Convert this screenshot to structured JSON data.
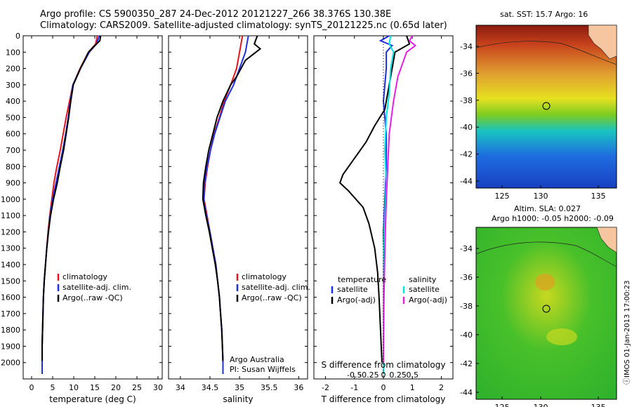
{
  "titles": {
    "line1": "Argo profile: CS 5900350_287 24-Dec-2012 20121227_266 38.376S 130.38E",
    "line2": "Climatology: CARS2009. Satellite-adjusted climatology: synTS_20121225.nc (0.65d later)"
  },
  "colors": {
    "climatology": "#e8141a",
    "satellite": "#1f2ee6",
    "argo": "#000000",
    "sat_salinity": "#00e5e5",
    "argo_salinity": "#e61ee6"
  },
  "chart_data": [
    {
      "type": "line",
      "name": "temperature",
      "xlabel": "temperature (deg C)",
      "ylabel": "",
      "xlim": [
        -2,
        31
      ],
      "ylim": [
        2100,
        0
      ],
      "xticks": [
        0,
        5,
        10,
        15,
        20,
        25,
        30
      ],
      "yticks": [
        0,
        100,
        200,
        300,
        400,
        500,
        600,
        700,
        800,
        900,
        1000,
        1100,
        1200,
        1300,
        1400,
        1500,
        1600,
        1700,
        1800,
        1900,
        2000
      ],
      "legend": [
        "climatology",
        "satellite-adj. clim.",
        "Argo(..raw -QC)"
      ],
      "series": [
        {
          "key": "climatology",
          "color": "#e8141a",
          "points": [
            [
              15.6,
              0
            ],
            [
              15.2,
              50
            ],
            [
              13.5,
              100
            ],
            [
              11.5,
              200
            ],
            [
              9.8,
              300
            ],
            [
              9.0,
              400
            ],
            [
              8.2,
              500
            ],
            [
              7.5,
              600
            ],
            [
              6.8,
              700
            ],
            [
              6.0,
              800
            ],
            [
              5.3,
              900
            ],
            [
              4.8,
              1000
            ],
            [
              4.3,
              1100
            ],
            [
              3.9,
              1200
            ],
            [
              3.6,
              1300
            ],
            [
              3.3,
              1400
            ],
            [
              3.0,
              1500
            ],
            [
              2.8,
              1600
            ],
            [
              2.7,
              1700
            ],
            [
              2.6,
              1800
            ],
            [
              2.5,
              1900
            ],
            [
              2.5,
              2000
            ],
            [
              2.5,
              2070
            ]
          ]
        },
        {
          "key": "satellite",
          "color": "#1f2ee6",
          "points": [
            [
              16.1,
              0
            ],
            [
              15.4,
              50
            ],
            [
              13.7,
              100
            ],
            [
              11.6,
              200
            ],
            [
              9.8,
              300
            ],
            [
              9.2,
              400
            ],
            [
              8.7,
              500
            ],
            [
              8.1,
              600
            ],
            [
              7.4,
              700
            ],
            [
              6.6,
              800
            ],
            [
              5.8,
              900
            ],
            [
              5.0,
              1000
            ],
            [
              4.4,
              1100
            ],
            [
              4.0,
              1200
            ],
            [
              3.6,
              1300
            ],
            [
              3.3,
              1400
            ],
            [
              3.0,
              1500
            ],
            [
              2.8,
              1600
            ],
            [
              2.7,
              1700
            ],
            [
              2.6,
              1800
            ],
            [
              2.5,
              1900
            ],
            [
              2.5,
              2000
            ],
            [
              2.5,
              2070
            ]
          ]
        },
        {
          "key": "argo",
          "color": "#000000",
          "points": [
            [
              16.4,
              0
            ],
            [
              16.2,
              30
            ],
            [
              15.0,
              60
            ],
            [
              13.5,
              100
            ],
            [
              11.6,
              200
            ],
            [
              9.9,
              300
            ],
            [
              9.3,
              400
            ],
            [
              8.8,
              500
            ],
            [
              8.2,
              600
            ],
            [
              7.6,
              700
            ],
            [
              6.8,
              800
            ],
            [
              6.1,
              900
            ],
            [
              5.2,
              1000
            ],
            [
              4.5,
              1100
            ],
            [
              4.0,
              1200
            ],
            [
              3.6,
              1300
            ],
            [
              3.3,
              1400
            ],
            [
              3.0,
              1500
            ],
            [
              2.8,
              1600
            ],
            [
              2.7,
              1700
            ],
            [
              2.6,
              1800
            ],
            [
              2.5,
              1900
            ],
            [
              2.5,
              1990
            ]
          ]
        }
      ]
    },
    {
      "type": "line",
      "name": "salinity",
      "xlabel": "salinity",
      "xlim": [
        33.8,
        36.15
      ],
      "ylim": [
        2100,
        0
      ],
      "xticks": [
        34,
        34.5,
        35,
        35.5,
        36
      ],
      "xticklabels": [
        "34",
        "34.5",
        "35",
        "35.5",
        "36"
      ],
      "legend": [
        "climatology",
        "satellite-adj. clim.",
        "Argo(..raw -QC)"
      ],
      "annotation": [
        "Argo Australia",
        "PI: Susan Wijffels"
      ],
      "series": [
        {
          "key": "climatology",
          "color": "#e8141a",
          "points": [
            [
              35.05,
              0
            ],
            [
              35.0,
              100
            ],
            [
              34.95,
              200
            ],
            [
              34.85,
              300
            ],
            [
              34.74,
              400
            ],
            [
              34.66,
              500
            ],
            [
              34.57,
              600
            ],
            [
              34.51,
              700
            ],
            [
              34.46,
              800
            ],
            [
              34.42,
              900
            ],
            [
              34.4,
              1000
            ],
            [
              34.45,
              1100
            ],
            [
              34.5,
              1200
            ],
            [
              34.55,
              1300
            ],
            [
              34.6,
              1400
            ],
            [
              34.63,
              1500
            ],
            [
              34.66,
              1600
            ],
            [
              34.68,
              1700
            ],
            [
              34.7,
              1800
            ],
            [
              34.71,
              1900
            ],
            [
              34.72,
              2000
            ],
            [
              34.72,
              2070
            ]
          ]
        },
        {
          "key": "satellite",
          "color": "#1f2ee6",
          "points": [
            [
              35.15,
              0
            ],
            [
              35.1,
              100
            ],
            [
              35.0,
              200
            ],
            [
              34.9,
              300
            ],
            [
              34.76,
              400
            ],
            [
              34.67,
              500
            ],
            [
              34.58,
              600
            ],
            [
              34.51,
              700
            ],
            [
              34.45,
              800
            ],
            [
              34.41,
              900
            ],
            [
              34.39,
              1000
            ],
            [
              34.44,
              1100
            ],
            [
              34.5,
              1200
            ],
            [
              34.55,
              1300
            ],
            [
              34.6,
              1400
            ],
            [
              34.63,
              1500
            ],
            [
              34.66,
              1600
            ],
            [
              34.68,
              1700
            ],
            [
              34.7,
              1800
            ],
            [
              34.71,
              1900
            ],
            [
              34.72,
              2000
            ],
            [
              34.72,
              2070
            ]
          ]
        },
        {
          "key": "argo",
          "color": "#000000",
          "points": [
            [
              35.3,
              0
            ],
            [
              35.25,
              50
            ],
            [
              35.35,
              80
            ],
            [
              35.1,
              150
            ],
            [
              34.95,
              250
            ],
            [
              34.85,
              300
            ],
            [
              34.72,
              400
            ],
            [
              34.62,
              500
            ],
            [
              34.55,
              600
            ],
            [
              34.48,
              700
            ],
            [
              34.43,
              800
            ],
            [
              34.39,
              900
            ],
            [
              34.38,
              1000
            ],
            [
              34.43,
              1100
            ],
            [
              34.49,
              1200
            ],
            [
              34.54,
              1300
            ],
            [
              34.59,
              1400
            ],
            [
              34.63,
              1500
            ],
            [
              34.66,
              1600
            ],
            [
              34.68,
              1700
            ],
            [
              34.7,
              1800
            ],
            [
              34.71,
              1900
            ],
            [
              34.72,
              1990
            ]
          ]
        }
      ]
    },
    {
      "type": "line",
      "name": "difference",
      "xlabel": "T difference from climatology",
      "top_xlabel": "S difference from climatology",
      "xlim": [
        -2.4,
        2.4
      ],
      "ylim": [
        2100,
        0
      ],
      "xticks": [
        -2,
        -1,
        0,
        1,
        2
      ],
      "top_ticks": [
        -0.5,
        -0.25,
        0,
        0.25,
        0.5
      ],
      "top_ticklabels": [
        "-0.5",
        "-0.25",
        "0",
        "0.25",
        "0.5"
      ],
      "legend_temperature": {
        "heading": "temperature",
        "items": [
          "satellite",
          "Argo(-adj)"
        ]
      },
      "legend_salinity": {
        "heading": "salinity",
        "items": [
          "satellite",
          "Argo(-adj)"
        ]
      },
      "series": [
        {
          "key": "temp_satellite",
          "color": "#1f2ee6",
          "points": [
            [
              0.2,
              0
            ],
            [
              -0.1,
              30
            ],
            [
              0.3,
              60
            ],
            [
              0.1,
              100
            ],
            [
              0.1,
              200
            ],
            [
              0.0,
              400
            ],
            [
              0.1,
              600
            ],
            [
              0.1,
              800
            ],
            [
              0.05,
              1000
            ],
            [
              0.0,
              1200
            ],
            [
              0.0,
              1400
            ],
            [
              0.0,
              1600
            ],
            [
              0.0,
              1800
            ],
            [
              0.0,
              2000
            ],
            [
              0.0,
              2070
            ]
          ]
        },
        {
          "key": "temp_argo",
          "color": "#000000",
          "points": [
            [
              0.8,
              0
            ],
            [
              0.9,
              50
            ],
            [
              0.4,
              100
            ],
            [
              0.3,
              200
            ],
            [
              0.2,
              300
            ],
            [
              0.1,
              400
            ],
            [
              0.05,
              450
            ],
            [
              -0.3,
              550
            ],
            [
              -0.6,
              650
            ],
            [
              -1.0,
              750
            ],
            [
              -1.4,
              850
            ],
            [
              -1.5,
              900
            ],
            [
              -1.2,
              950
            ],
            [
              -0.7,
              1050
            ],
            [
              -0.5,
              1150
            ],
            [
              -0.3,
              1300
            ],
            [
              -0.2,
              1450
            ],
            [
              -0.15,
              1600
            ],
            [
              -0.1,
              1800
            ],
            [
              -0.05,
              2000
            ]
          ]
        },
        {
          "key": "sal_satellite",
          "color": "#00e5e5",
          "points": [
            [
              0.25,
              0
            ],
            [
              0.2,
              50
            ],
            [
              0.35,
              100
            ],
            [
              0.25,
              200
            ],
            [
              0.2,
              350
            ],
            [
              0.1,
              500
            ],
            [
              0.05,
              700
            ],
            [
              0.1,
              900
            ],
            [
              0.05,
              1100
            ],
            [
              0.0,
              1300
            ],
            [
              0.0,
              1500
            ],
            [
              0.0,
              1800
            ],
            [
              0.0,
              2070
            ]
          ]
        },
        {
          "key": "sal_argo",
          "color": "#e61ee6",
          "points": [
            [
              1.0,
              0
            ],
            [
              0.9,
              30
            ],
            [
              1.1,
              60
            ],
            [
              0.8,
              100
            ],
            [
              0.7,
              150
            ],
            [
              0.5,
              250
            ],
            [
              0.35,
              400
            ],
            [
              0.2,
              600
            ],
            [
              0.15,
              800
            ],
            [
              0.1,
              1000
            ],
            [
              0.05,
              1300
            ],
            [
              0.02,
              1600
            ],
            [
              0.0,
              2000
            ]
          ]
        }
      ]
    }
  ],
  "maps": {
    "sst": {
      "title": "sat. SST: 15.7 Argo: 16",
      "yticks": [
        "-34",
        "-36",
        "-38",
        "-40",
        "-42",
        "-44"
      ],
      "xticks": [
        "125",
        "130",
        "135"
      ]
    },
    "sla": {
      "title1": "Altim. SLA: 0.027",
      "title2": "Argo h1000: -0.05 h2000: -0.09",
      "yticks": [
        "-34",
        "-36",
        "-38",
        "-40",
        "-42",
        "-44"
      ],
      "xticks": [
        "125",
        "130",
        "135"
      ]
    }
  },
  "footer": "ⓘIMOS 01-Jan-2013 17:00:23"
}
